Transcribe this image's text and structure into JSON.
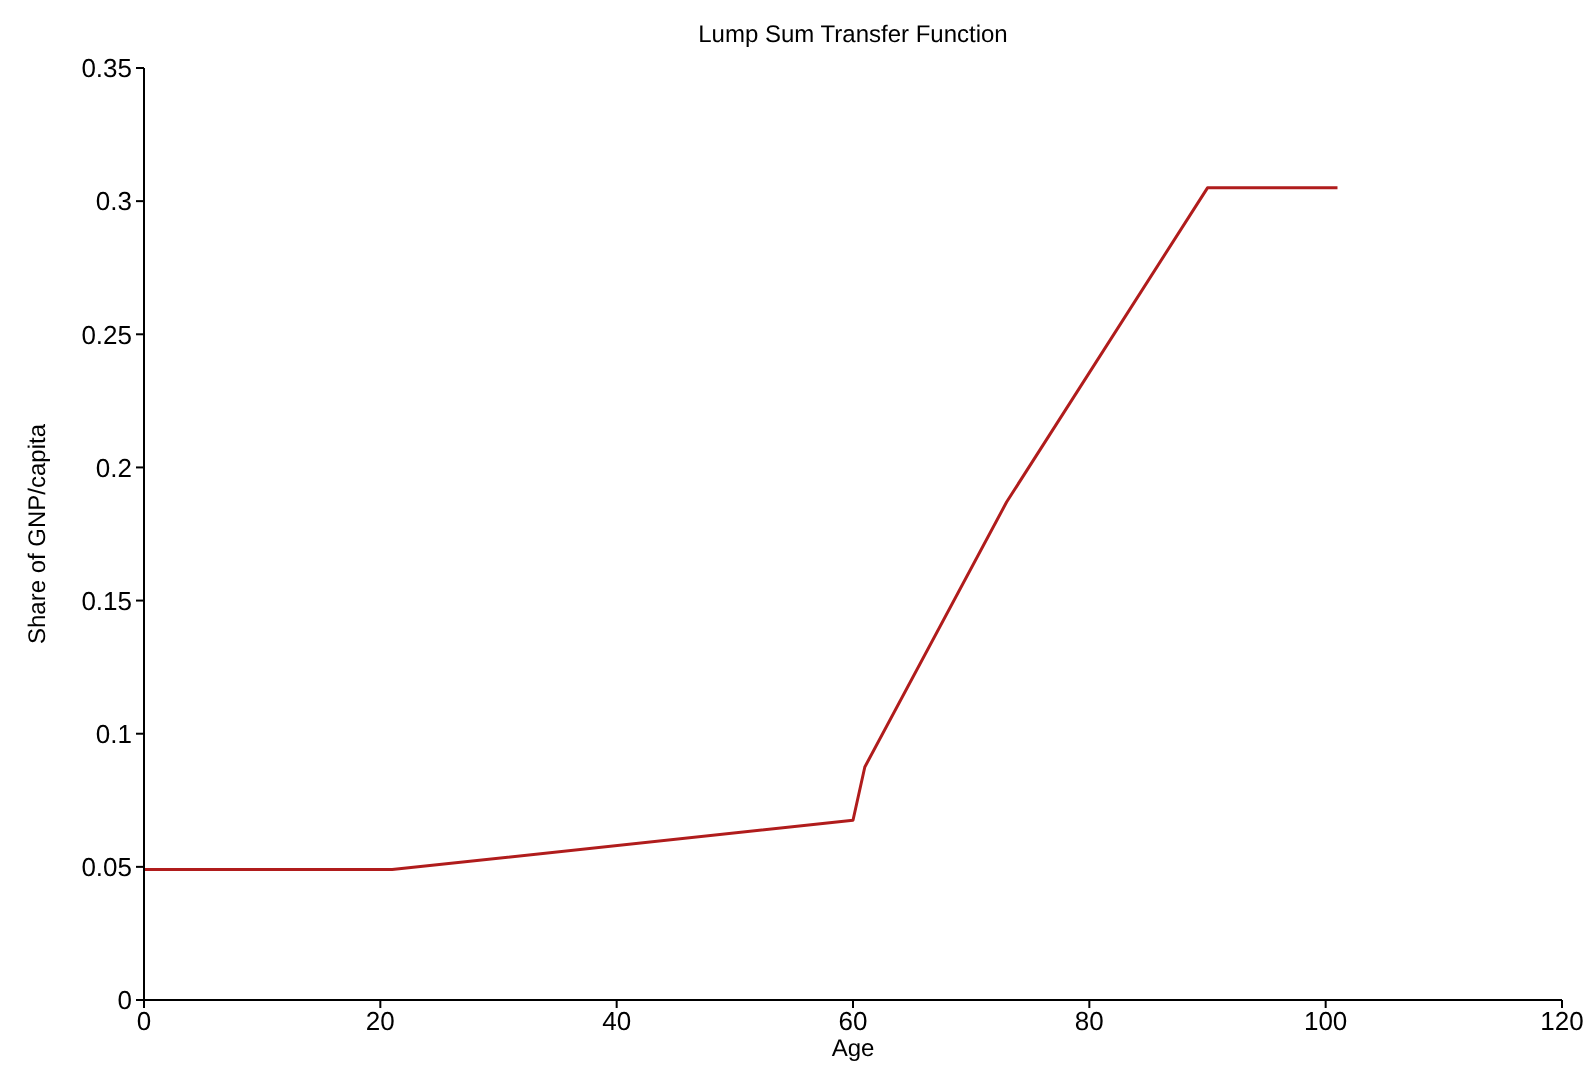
{
  "chart_data": {
    "type": "line",
    "title": "Lump Sum Transfer Function",
    "xlabel": "Age",
    "ylabel": "Share of GNP/capita",
    "x": [
      0,
      21,
      60,
      61,
      73,
      90,
      101
    ],
    "series": [
      {
        "color": "#b01c1c",
        "values": [
          0.049,
          0.049,
          0.0675,
          0.0875,
          0.187,
          0.305,
          0.305
        ]
      }
    ],
    "xlim": [
      0,
      120
    ],
    "xticks": [
      0,
      20,
      40,
      60,
      80,
      100,
      120
    ],
    "ylim": [
      0,
      0.35
    ],
    "yticks": [
      0,
      0.05,
      0.1,
      0.15,
      0.2,
      0.25,
      0.3,
      0.35
    ],
    "grid": false,
    "legend": false,
    "marker": "none",
    "line_style": "solid"
  }
}
